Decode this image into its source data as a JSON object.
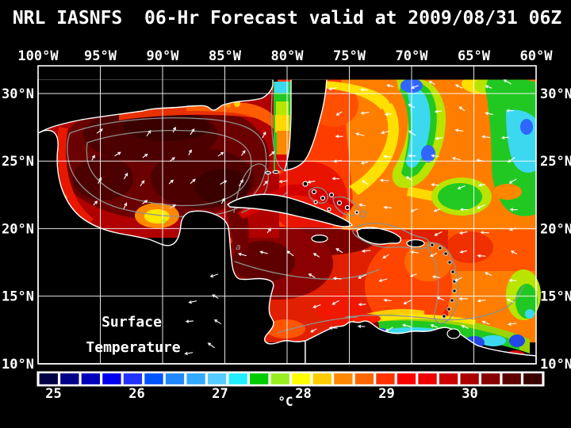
{
  "title": "NRL IASNFS  06-Hr Forecast valid at 2009/08/31 06Z",
  "axes": {
    "lon_ticks": [
      "100°W",
      "95°W",
      "90°W",
      "85°W",
      "80°W",
      "75°W",
      "70°W",
      "65°W",
      "60°W"
    ],
    "lat_ticks": [
      "30°N",
      "25°N",
      "20°N",
      "15°N",
      "10°N"
    ]
  },
  "map": {
    "annotation_line1": "Surface",
    "annotation_line2": "Temperature",
    "contour_label": "a"
  },
  "colorbar": {
    "unit": "°C",
    "tick_labels": [
      "25",
      "26",
      "27",
      "28",
      "29",
      "30"
    ],
    "cell_colors": [
      "#000044",
      "#000088",
      "#0000bb",
      "#0000ee",
      "#2233ff",
      "#0055ff",
      "#2288ff",
      "#33aaff",
      "#55ccff",
      "#22eeff",
      "#00cc00",
      "#99ee22",
      "#ffff00",
      "#ffcc00",
      "#ff8800",
      "#ff6600",
      "#ff3300",
      "#ff0000",
      "#ee0000",
      "#cc0000",
      "#aa0000",
      "#880000",
      "#5e0000",
      "#3a0000"
    ]
  },
  "colors": {
    "background": "#000000",
    "land": "#000000",
    "frame": "#ffffff",
    "grid": "#ffffff",
    "coastline": "#ffffff",
    "contour": "#8f8f8f",
    "text": "#ffffff",
    "wind_arrows": "#ffffff"
  }
}
